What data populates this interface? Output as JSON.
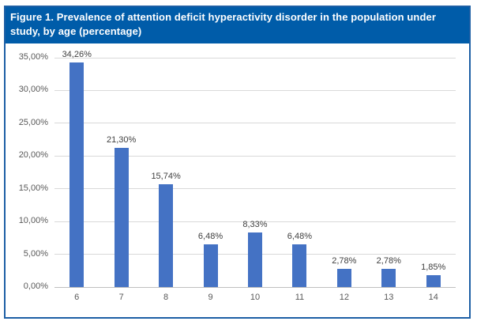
{
  "header": {
    "title": "Figure 1. Prevalence of attention deficit hyperactivity disorder in the population under study, by age (percentage)"
  },
  "chart_data": {
    "type": "bar",
    "title": "Figure 1. Prevalence of attention deficit hyperactivity disorder in the population under study, by age (percentage)",
    "categories": [
      "6",
      "7",
      "8",
      "9",
      "10",
      "11",
      "12",
      "13",
      "14"
    ],
    "values": [
      34.26,
      21.3,
      15.74,
      6.48,
      8.33,
      6.48,
      2.78,
      2.78,
      1.85
    ],
    "bar_labels": [
      "34,26%",
      "21,30%",
      "15,74%",
      "6,48%",
      "8,33%",
      "6,48%",
      "2,78%",
      "2,78%",
      "1,85%"
    ],
    "y_tick_labels_top_to_bottom": [
      "35,00%",
      "30,00%",
      "25,00%",
      "20,00%",
      "15,00%",
      "10,00%",
      "5,00%",
      "0,00%"
    ],
    "xlabel": "",
    "ylabel": "",
    "ylim": [
      0,
      35
    ],
    "y_tick_step": 5,
    "grid": true,
    "legend_position": "none",
    "decimal_separator": ","
  },
  "colors": {
    "header_bg": "#005ca9",
    "figure_border": "#1d5fa5",
    "bar": "#4472c4",
    "gridline": "#d9d9d9",
    "axis_line": "#bfbfbf",
    "tick_label": "#595959",
    "data_label": "#404040"
  }
}
